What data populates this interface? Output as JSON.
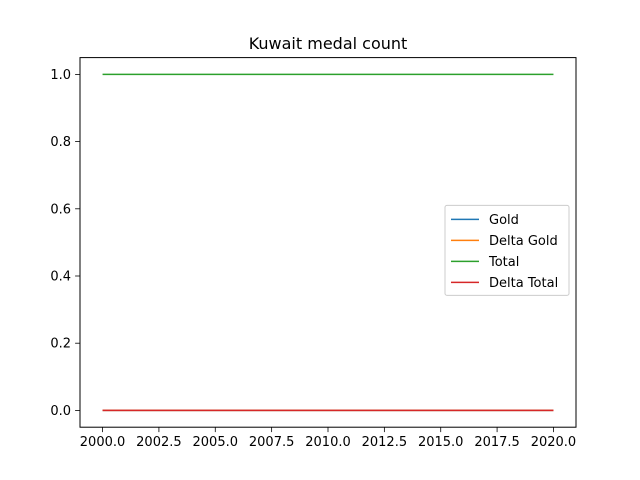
{
  "chart_data": {
    "type": "line",
    "title": "Kuwait medal count",
    "xlabel": "",
    "ylabel": "",
    "xlim": [
      1999.0,
      2021.0
    ],
    "ylim": [
      -0.05,
      1.05
    ],
    "x_ticks": [
      2000.0,
      2002.5,
      2005.0,
      2007.5,
      2010.0,
      2012.5,
      2015.0,
      2017.5,
      2020.0
    ],
    "x_tick_labels": [
      "2000.0",
      "2002.5",
      "2005.0",
      "2007.5",
      "2010.0",
      "2012.5",
      "2015.0",
      "2017.5",
      "2020.0"
    ],
    "y_ticks": [
      0.0,
      0.2,
      0.4,
      0.6,
      0.8,
      1.0
    ],
    "y_tick_labels": [
      "0.0",
      "0.2",
      "0.4",
      "0.6",
      "0.8",
      "1.0"
    ],
    "grid": false,
    "legend_position": "center-right",
    "series": [
      {
        "name": "Gold",
        "color": "#1f77b4",
        "x": [
          2000,
          2020
        ],
        "values": [
          0,
          0
        ]
      },
      {
        "name": "Delta Gold",
        "color": "#ff7f0e",
        "x": [
          2000,
          2020
        ],
        "values": [
          0,
          0
        ]
      },
      {
        "name": "Total",
        "color": "#2ca02c",
        "x": [
          2000,
          2020
        ],
        "values": [
          1,
          1
        ]
      },
      {
        "name": "Delta Total",
        "color": "#d62728",
        "x": [
          2000,
          2020
        ],
        "values": [
          0,
          0
        ]
      }
    ]
  }
}
